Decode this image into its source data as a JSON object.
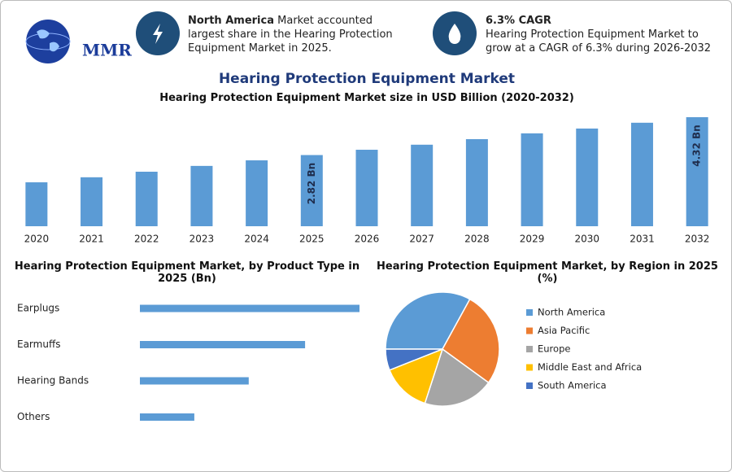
{
  "header": {
    "logo": "MMR",
    "highlights": [
      {
        "title": "North America",
        "text": "Market accounted largest share in the Hearing Protection Equipment Market in 2025."
      },
      {
        "title": "6.3% CAGR",
        "text": "Hearing Protection Equipment Market to grow at a CAGR of 6.3% during 2026-2032"
      }
    ]
  },
  "title": "Hearing Protection Equipment Market",
  "chart_data": [
    {
      "type": "bar",
      "title": "Hearing Protection Equipment Market size in USD Billion (2020-2032)",
      "categories": [
        "2020",
        "2021",
        "2022",
        "2023",
        "2024",
        "2025",
        "2026",
        "2027",
        "2028",
        "2029",
        "2030",
        "2031",
        "2032"
      ],
      "values": [
        1.74,
        1.94,
        2.16,
        2.39,
        2.61,
        2.82,
        3.03,
        3.23,
        3.45,
        3.68,
        3.87,
        4.1,
        4.32
      ],
      "value_labels": [
        null,
        null,
        null,
        null,
        null,
        "2.82 Bn",
        null,
        null,
        null,
        null,
        null,
        null,
        "4.32 Bn"
      ],
      "color": "#5b9bd5"
    },
    {
      "type": "bar",
      "horizontal": true,
      "title": "Hearing Protection Equipment Market, by Product Type in 2025 (Bn)",
      "categories": [
        "Earplugs",
        "Earmuffs",
        "Hearing Bands",
        "Others"
      ],
      "values": [
        1.13,
        0.85,
        0.56,
        0.28
      ],
      "color": "#5b9bd5"
    },
    {
      "type": "pie",
      "title": "Hearing Protection Equipment Market, by Region in 2025 (%)",
      "categories": [
        "North America",
        "Asia Pacific",
        "Europe",
        "Middle East and Africa",
        "South America"
      ],
      "values": [
        33,
        27,
        20,
        14,
        6
      ],
      "colors": [
        "#5b9bd5",
        "#ed7d31",
        "#a5a5a5",
        "#ffc000",
        "#4472c4"
      ]
    }
  ]
}
